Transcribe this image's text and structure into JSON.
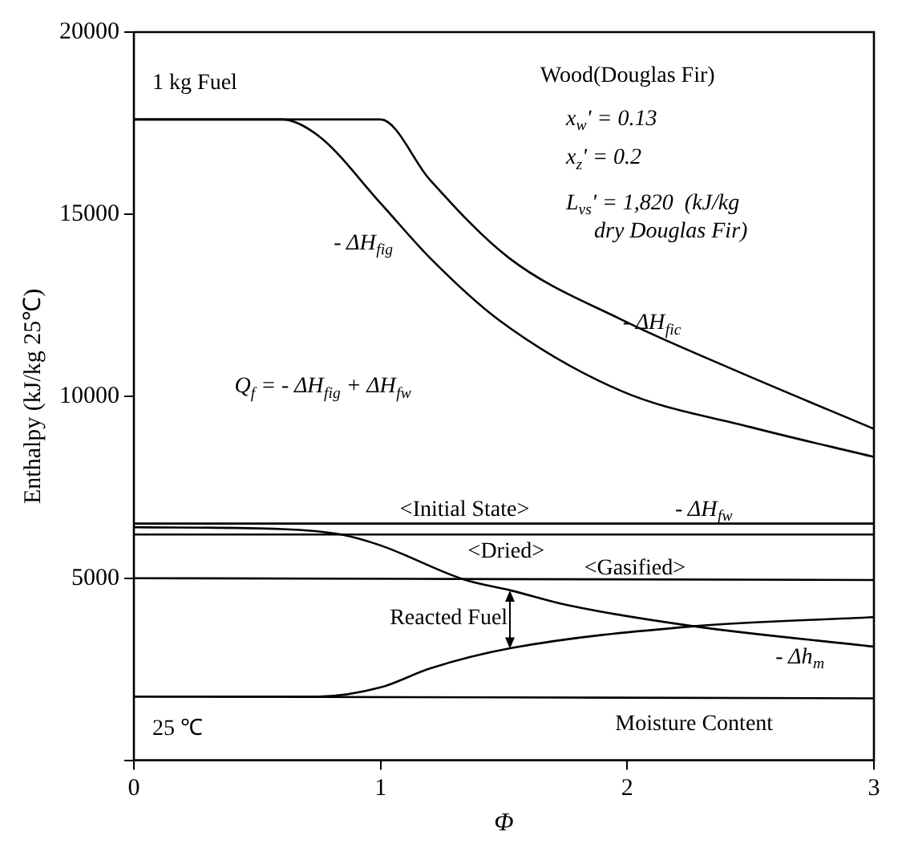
{
  "chart_data": {
    "type": "line",
    "xlabel": "Φ",
    "ylabel": "Enthalpy (kJ/kg 25℃)",
    "xlim": [
      0,
      3
    ],
    "xticks": [
      0,
      1,
      2,
      3
    ],
    "ylim": [
      0,
      20000
    ],
    "yticks": [
      {
        "value": 0,
        "label": null
      },
      5000,
      10000,
      15000,
      20000
    ],
    "grid": false,
    "legend": false,
    "marker": "none",
    "line_style": "solid",
    "series": [
      {
        "name": "- ΔH$_{fic}$",
        "color": "#000000",
        "x": [
          0,
          1,
          1.2,
          1.52,
          1.98,
          2.43,
          3
        ],
        "values": [
          17600,
          17600,
          15940,
          13800,
          12090,
          10730,
          9100
        ]
      },
      {
        "name": "- ΔH$_{fig}$",
        "color": "#000000",
        "x": [
          0,
          0.6,
          0.75,
          1,
          1.2,
          1.48,
          1.98,
          2.5,
          3
        ],
        "values": [
          17600,
          17600,
          17140,
          15300,
          13800,
          12090,
          10130,
          9150,
          8330
        ]
      },
      {
        "name": "- ΔH$_{fw}$",
        "color": "#000000",
        "x": [
          0,
          3
        ],
        "values": [
          6500,
          6500
        ]
      },
      {
        "color": "#000000",
        "x": [
          0,
          3
        ],
        "values": [
          6200,
          6200
        ]
      },
      {
        "color": "#000000",
        "x": [
          0,
          3
        ],
        "values": [
          5000,
          4950
        ]
      },
      {
        "name": "- Δh$_{m}$",
        "color": "#000000",
        "x": [
          0,
          0.6,
          0.84,
          1,
          1.34,
          1.53,
          1.75,
          2.27,
          3
        ],
        "values": [
          6400,
          6350,
          6200,
          5900,
          4960,
          4660,
          4270,
          3680,
          3120
        ]
      },
      {
        "color": "#000000",
        "x": [
          0,
          0.75,
          1,
          1.2,
          1.53,
          2.27,
          3
        ],
        "values": [
          1750,
          1750,
          2000,
          2520,
          3080,
          3680,
          3930
        ]
      },
      {
        "color": "#000000",
        "x": [
          0,
          3
        ],
        "values": [
          1750,
          1700
        ]
      }
    ],
    "annotations": [
      "1 kg Fuel",
      "Wood(Douglas Fir)",
      "x$_{w}$' = 0.13",
      "x$_{z}$' = 0.2",
      "L$_{vs}$' = 1,820  (kJ/kg\n     dry Douglas Fir)",
      "Q$_{f}$ = - ΔH$_{fig}$ + ΔH$_{fw}$",
      "25 ℃",
      "<Initial State>",
      "<Dried>",
      "<Gasified>",
      "Reacted Fuel",
      "Moisture Content"
    ]
  }
}
